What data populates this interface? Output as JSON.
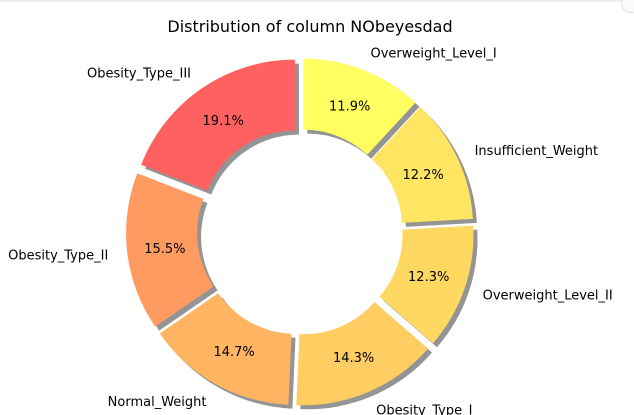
{
  "chart_data": {
    "type": "pie",
    "title": "Distribution of column NObeyesdad",
    "categories": [
      "Obesity_Type_III",
      "Obesity_Type_II",
      "Normal_Weight",
      "Obesity_Type_I",
      "Overweight_Level_II",
      "Insufficient_Weight",
      "Overweight_Level_I"
    ],
    "values": [
      19.1,
      15.5,
      14.7,
      14.3,
      12.3,
      12.2,
      11.9
    ],
    "value_labels": [
      "19.1%",
      "15.5%",
      "14.7%",
      "14.3%",
      "12.3%",
      "12.2%",
      "11.9%"
    ],
    "colors": [
      "#ff6161",
      "#ff9a61",
      "#ffb461",
      "#ffcd61",
      "#ffd861",
      "#ffe561",
      "#ffff61"
    ],
    "donut": true,
    "exploded": true,
    "shadow": true,
    "start_angle_deg": 90,
    "direction": "counterclockwise"
  }
}
